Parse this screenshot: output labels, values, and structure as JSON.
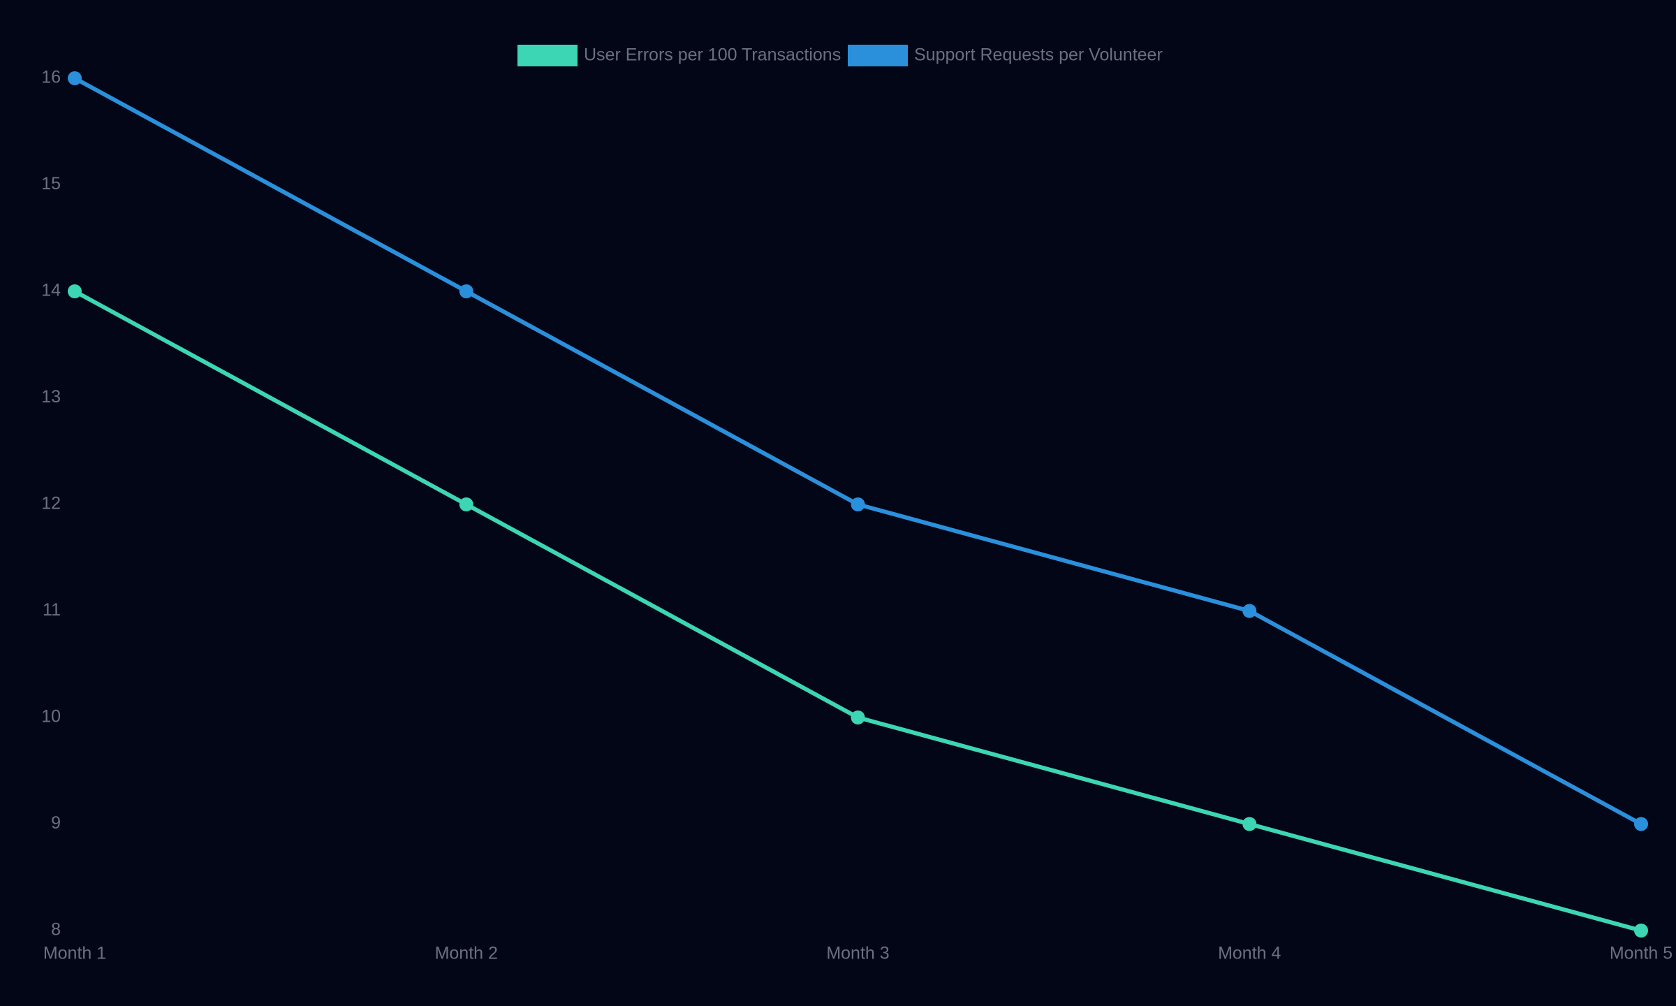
{
  "chart_data": {
    "type": "line",
    "categories": [
      "Month 1",
      "Month 2",
      "Month 3",
      "Month 4",
      "Month 5"
    ],
    "series": [
      {
        "name": "User Errors per 100 Transactions",
        "color": "#3dd6b5",
        "values": [
          14,
          12,
          10,
          9,
          8
        ]
      },
      {
        "name": "Support Requests per Volunteer",
        "color": "#2a90dc",
        "values": [
          16,
          14,
          12,
          11,
          9
        ]
      }
    ],
    "ylim": [
      8,
      16
    ],
    "yticks": [
      8,
      9,
      10,
      11,
      12,
      13,
      14,
      15,
      16
    ],
    "grid": false,
    "legend": "top"
  }
}
